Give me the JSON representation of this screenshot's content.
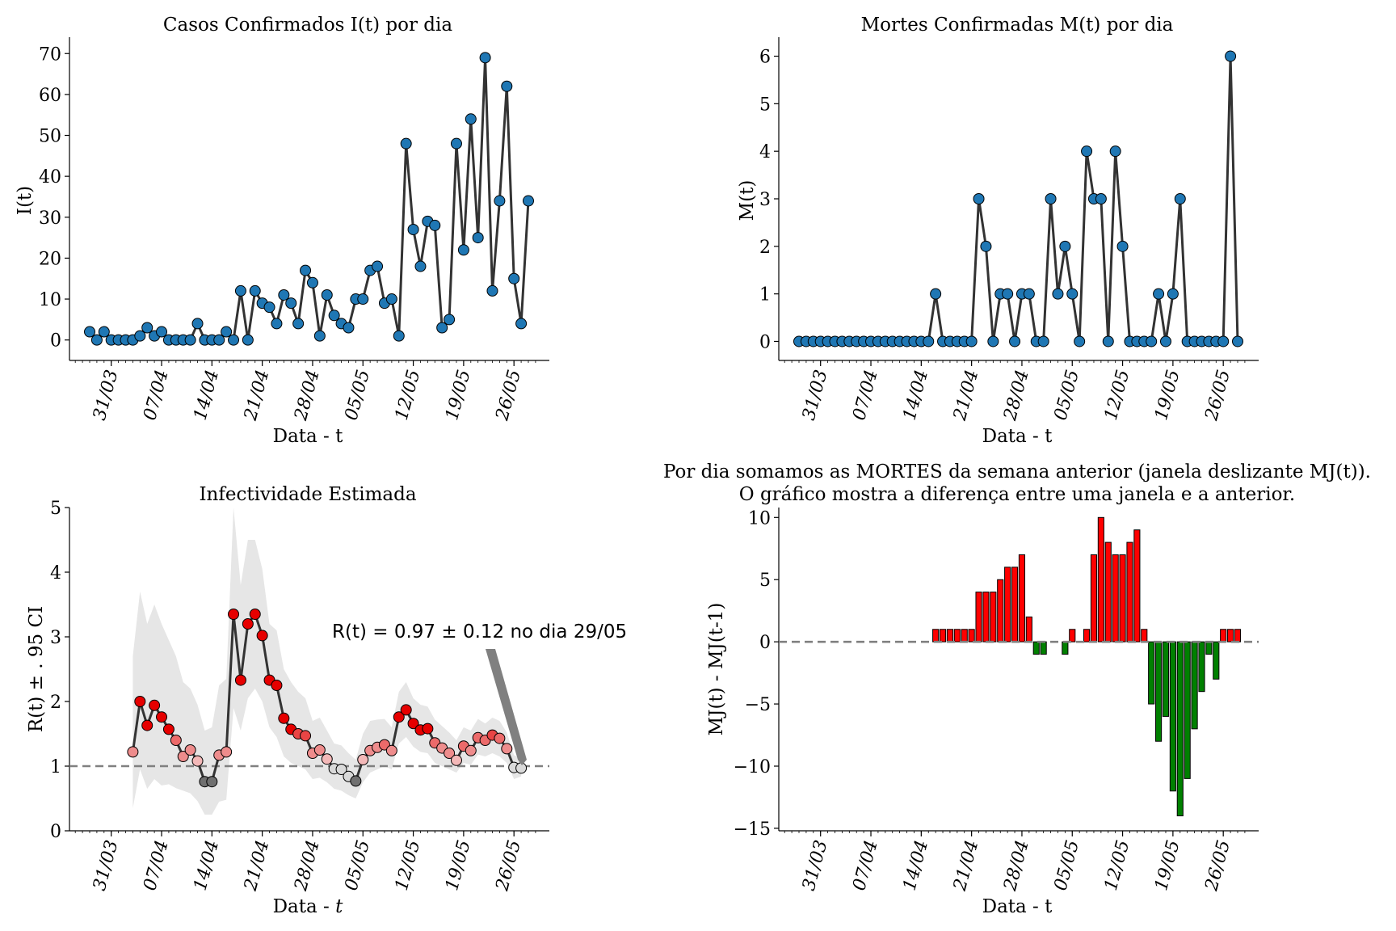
{
  "figure": {
    "background": "#ffffff"
  },
  "date_ticks": [
    "31/03",
    "07/04",
    "14/04",
    "21/04",
    "28/04",
    "05/05",
    "12/05",
    "19/05",
    "26/05"
  ],
  "chart_data": [
    {
      "id": "cases",
      "type": "line",
      "title": "Casos Confirmados I(t) por dia",
      "xlabel": "Data - t",
      "ylabel": "I(t)",
      "x_start": "2020-03-28",
      "ylim": [
        -5,
        74
      ],
      "yticks": [
        0,
        10,
        20,
        30,
        40,
        50,
        60,
        70
      ],
      "values": [
        2,
        0,
        2,
        0,
        0,
        0,
        0,
        1,
        3,
        1,
        2,
        0,
        0,
        0,
        0,
        4,
        0,
        0,
        0,
        2,
        0,
        12,
        0,
        12,
        9,
        8,
        4,
        11,
        9,
        4,
        17,
        14,
        1,
        11,
        6,
        4,
        3,
        10,
        10,
        17,
        18,
        9,
        10,
        1,
        48,
        27,
        18,
        29,
        28,
        3,
        5,
        48,
        22,
        54,
        25,
        69,
        12,
        34,
        62,
        15,
        4,
        34
      ],
      "marker_color": "#1f77b4",
      "line_color": "#333333"
    },
    {
      "id": "deaths",
      "type": "line",
      "title": "Mortes Confirmadas M(t) por dia",
      "xlabel": "Data - t",
      "ylabel": "M(t)",
      "x_start": "2020-03-28",
      "ylim": [
        -0.4,
        6.4
      ],
      "yticks": [
        0,
        1,
        2,
        3,
        4,
        5,
        6
      ],
      "values": [
        0,
        0,
        0,
        0,
        0,
        0,
        0,
        0,
        0,
        0,
        0,
        0,
        0,
        0,
        0,
        0,
        0,
        0,
        0,
        1,
        0,
        0,
        0,
        0,
        0,
        3,
        2,
        0,
        1,
        1,
        0,
        1,
        1,
        0,
        0,
        3,
        1,
        2,
        1,
        0,
        4,
        3,
        3,
        0,
        4,
        2,
        0,
        0,
        0,
        0,
        1,
        0,
        1,
        3,
        0,
        0,
        0,
        0,
        0,
        0,
        6,
        0
      ],
      "marker_color": "#1f77b4",
      "line_color": "#333333"
    },
    {
      "id": "rt",
      "type": "line",
      "title": "Infectividade Estimada",
      "xlabel": "Data - ",
      "xlabel_italic": "t",
      "ylabel": "R(t) ± . 95 CI",
      "x_start": "2020-04-03",
      "ylim": [
        0,
        5
      ],
      "yticks": [
        0,
        1,
        2,
        3,
        4,
        5
      ],
      "reference_line": 1,
      "values": [
        1.22,
        2.0,
        1.63,
        1.94,
        1.76,
        1.57,
        1.4,
        1.15,
        1.25,
        1.08,
        0.76,
        0.76,
        1.17,
        1.22,
        3.35,
        2.33,
        3.2,
        3.35,
        3.02,
        2.33,
        2.25,
        1.74,
        1.57,
        1.5,
        1.47,
        1.2,
        1.25,
        1.11,
        0.96,
        0.95,
        0.84,
        0.77,
        1.1,
        1.24,
        1.29,
        1.33,
        1.24,
        1.76,
        1.87,
        1.66,
        1.56,
        1.58,
        1.36,
        1.28,
        1.2,
        1.09,
        1.31,
        1.24,
        1.44,
        1.4,
        1.48,
        1.43,
        1.27,
        0.98,
        0.97
      ],
      "ci_low": [
        0.35,
        0.95,
        0.65,
        0.8,
        0.7,
        0.72,
        0.66,
        0.62,
        0.58,
        0.46,
        0.25,
        0.25,
        0.45,
        0.48,
        1.9,
        1.55,
        2.05,
        2.2,
        2.0,
        1.6,
        1.45,
        1.15,
        1.05,
        1.0,
        0.95,
        0.8,
        0.82,
        0.75,
        0.65,
        0.62,
        0.55,
        0.5,
        0.75,
        0.9,
        0.95,
        1.0,
        0.95,
        1.35,
        1.45,
        1.3,
        1.22,
        1.2,
        1.05,
        1.0,
        0.95,
        0.9,
        1.05,
        1.02,
        1.18,
        1.15,
        1.2,
        1.15,
        1.05,
        0.8,
        0.84
      ],
      "ci_high": [
        2.7,
        3.7,
        3.2,
        3.5,
        3.2,
        2.95,
        2.7,
        2.3,
        2.2,
        1.95,
        1.55,
        1.6,
        2.25,
        2.35,
        5.0,
        3.8,
        4.5,
        4.5,
        4.05,
        3.2,
        3.1,
        2.5,
        2.3,
        2.15,
        2.05,
        1.7,
        1.75,
        1.55,
        1.35,
        1.32,
        1.2,
        1.1,
        1.5,
        1.7,
        1.72,
        1.73,
        1.6,
        2.15,
        2.3,
        2.05,
        1.95,
        1.92,
        1.72,
        1.62,
        1.52,
        1.4,
        1.6,
        1.55,
        1.73,
        1.66,
        1.75,
        1.7,
        1.52,
        1.17,
        1.12
      ],
      "annotation": "R(t) = 0.97 ± 0.12 no dia 29/05",
      "band_color": "#e6e6e6",
      "line_color": "#333333"
    },
    {
      "id": "weekly_diff",
      "type": "bar",
      "title_lines": [
        "Por dia somamos as MORTES da semana anterior (janela deslizante MJ(t)).",
        "O gráfico mostra a diferença entre uma janela e a anterior."
      ],
      "xlabel": "Data - t",
      "ylabel": "MJ(t) - MJ(t-1)",
      "x_start": "2020-03-28",
      "ylim": [
        -15.2,
        10.8
      ],
      "yticks": [
        10,
        5,
        0,
        -5,
        -10,
        -15
      ],
      "ytick_labels": [
        "10",
        "5",
        "0",
        "−5",
        "−10",
        "−15"
      ],
      "reference_line": 0,
      "values": [
        0,
        0,
        0,
        0,
        0,
        0,
        0,
        0,
        0,
        0,
        0,
        0,
        0,
        0,
        0,
        0,
        0,
        0,
        0,
        1,
        1,
        1,
        1,
        1,
        1,
        4,
        4,
        4,
        5,
        6,
        6,
        7,
        2,
        -1,
        -1,
        0,
        0,
        -1,
        1,
        0,
        1,
        7,
        10,
        8,
        7,
        7,
        8,
        9,
        1,
        -5,
        -8,
        -6,
        -12,
        -14,
        -11,
        -7,
        -4,
        -1,
        -3,
        1,
        1,
        1
      ],
      "positive_color": "#ff0000",
      "negative_color": "#008000"
    }
  ]
}
